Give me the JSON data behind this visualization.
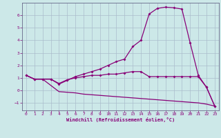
{
  "xlabel": "Windchill (Refroidissement éolien,°C)",
  "background_color": "#cce8e8",
  "grid_color": "#aabccc",
  "line_color": "#880077",
  "xlim": [
    -0.5,
    23.5
  ],
  "ylim": [
    -1.6,
    7.0
  ],
  "yticks": [
    -1,
    0,
    1,
    2,
    3,
    4,
    5,
    6
  ],
  "xticks": [
    0,
    1,
    2,
    3,
    4,
    5,
    6,
    7,
    8,
    9,
    10,
    11,
    12,
    13,
    14,
    15,
    16,
    17,
    18,
    19,
    20,
    21,
    22,
    23
  ],
  "line1_x": [
    0,
    1,
    2,
    3,
    4,
    5,
    6,
    7,
    8,
    9,
    10,
    11,
    12,
    13,
    14,
    15,
    16,
    17,
    18,
    19,
    20,
    21,
    22,
    23
  ],
  "line1_y": [
    1.2,
    0.9,
    0.9,
    0.9,
    0.55,
    0.85,
    1.0,
    1.1,
    1.2,
    1.2,
    1.3,
    1.3,
    1.4,
    1.5,
    1.5,
    1.1,
    1.1,
    1.1,
    1.1,
    1.1,
    1.1,
    1.1,
    0.25,
    -1.25
  ],
  "line2_x": [
    0,
    1,
    2,
    3,
    4,
    5,
    6,
    7,
    8,
    9,
    10,
    11,
    12,
    13,
    14,
    15,
    16,
    17,
    18,
    19,
    20,
    21,
    22,
    23
  ],
  "line2_y": [
    1.2,
    0.9,
    0.9,
    0.9,
    0.5,
    0.8,
    1.1,
    1.3,
    1.5,
    1.7,
    2.0,
    2.3,
    2.5,
    3.5,
    4.0,
    6.1,
    6.55,
    6.65,
    6.6,
    6.5,
    3.8,
    1.2,
    0.25,
    -1.25
  ],
  "line3_x": [
    0,
    1,
    2,
    3,
    4,
    5,
    6,
    7,
    8,
    9,
    10,
    11,
    12,
    13,
    14,
    15,
    16,
    17,
    18,
    19,
    20,
    21,
    22,
    23
  ],
  "line3_y": [
    1.2,
    0.9,
    0.9,
    0.4,
    -0.1,
    -0.15,
    -0.2,
    -0.3,
    -0.35,
    -0.4,
    -0.45,
    -0.5,
    -0.55,
    -0.6,
    -0.65,
    -0.7,
    -0.75,
    -0.8,
    -0.85,
    -0.9,
    -0.95,
    -1.0,
    -1.1,
    -1.25
  ]
}
